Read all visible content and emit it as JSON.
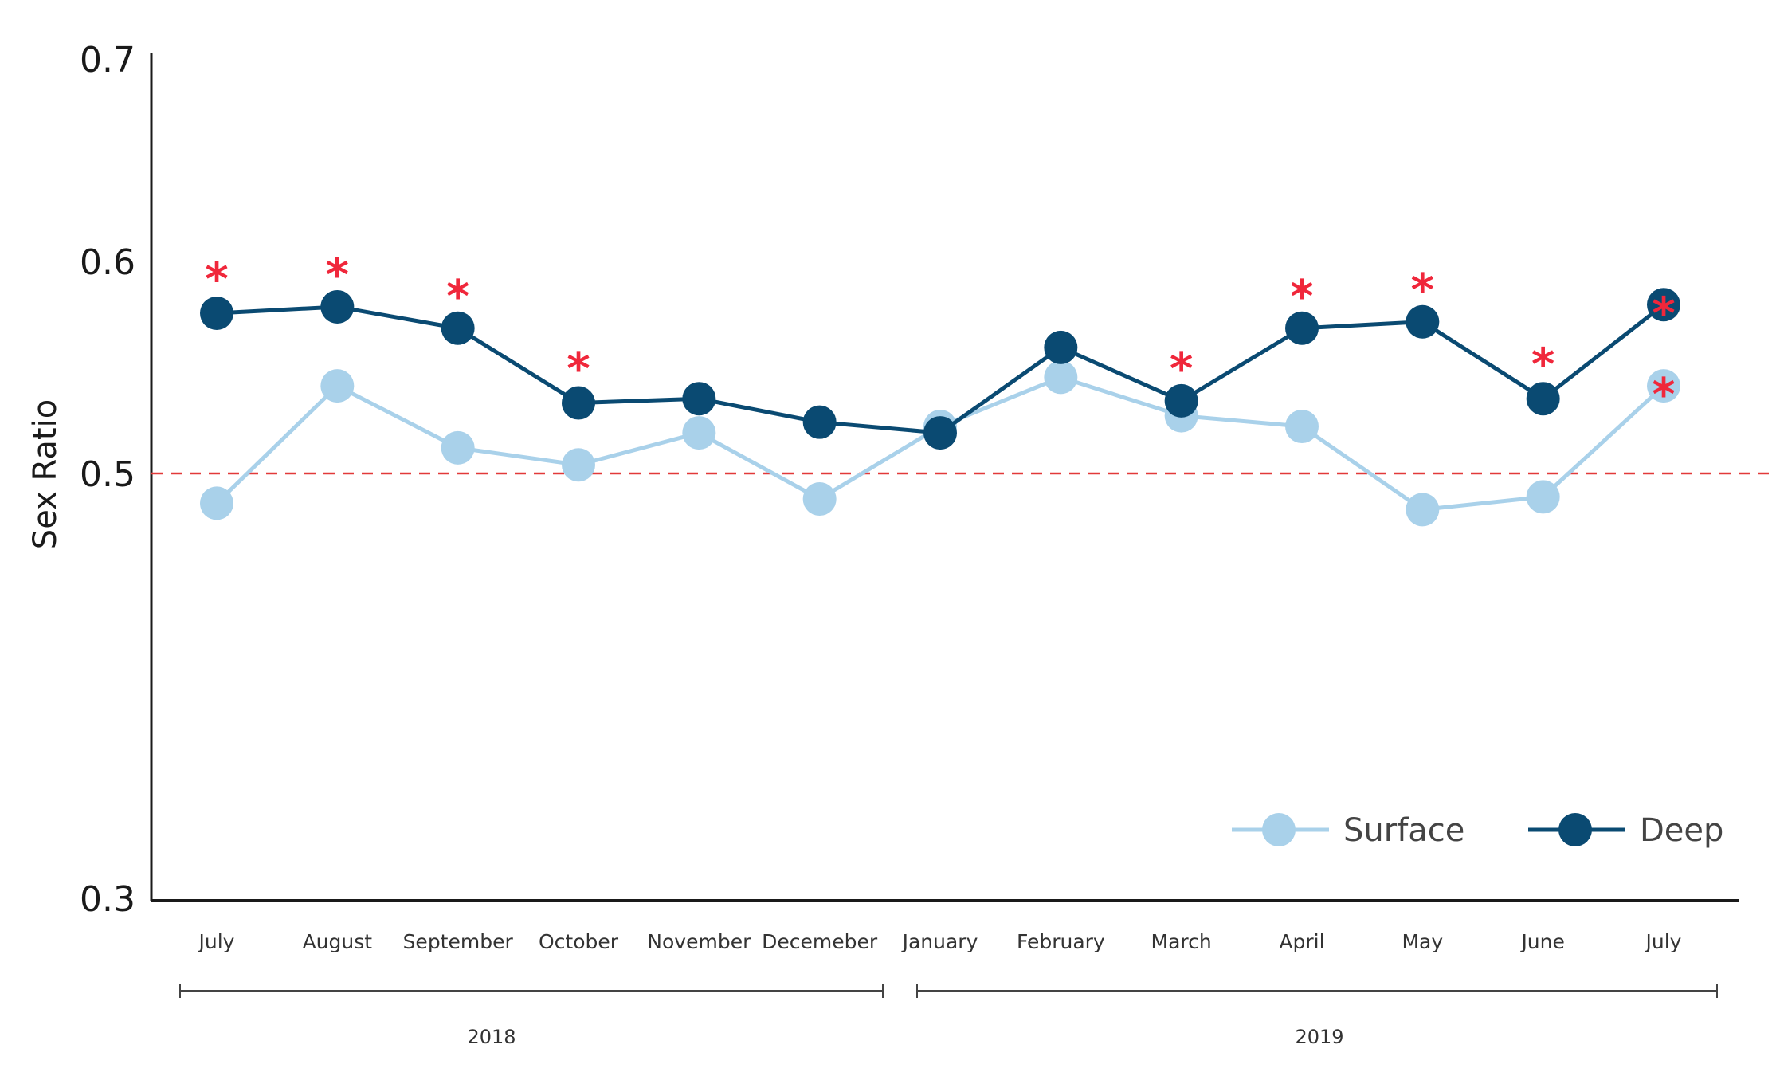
{
  "chart_data": {
    "type": "line",
    "ylabel": "Sex Ratio",
    "xlabel": "",
    "categories": [
      "July",
      "August",
      "September",
      "October",
      "November",
      "Decemeber",
      "January",
      "February",
      "March",
      "April",
      "May",
      "June",
      "July"
    ],
    "yticks": [
      "0.7",
      "0.6",
      "0.5",
      "0.3"
    ],
    "ytick_values": [
      0.7,
      0.6,
      0.5,
      0.3
    ],
    "ylim": [
      0.3,
      0.7
    ],
    "reference_line": {
      "value": 0.5,
      "style": "dashed",
      "color": "#e23a3a"
    },
    "series": [
      {
        "name": "Surface",
        "color": "#a9d1ea",
        "values": [
          0.486,
          0.541,
          0.512,
          0.504,
          0.519,
          0.488,
          0.522,
          0.545,
          0.527,
          0.522,
          0.483,
          0.489,
          0.541
        ]
      },
      {
        "name": "Deep",
        "color": "#0a4a72",
        "values": [
          0.575,
          0.578,
          0.568,
          0.533,
          0.535,
          0.524,
          0.519,
          0.559,
          0.534,
          0.568,
          0.571,
          0.535,
          0.579
        ]
      }
    ],
    "significance_marks": [
      {
        "index": 0,
        "value": 0.595,
        "label": "*"
      },
      {
        "index": 1,
        "value": 0.597,
        "label": "*"
      },
      {
        "index": 2,
        "value": 0.587,
        "label": "*"
      },
      {
        "index": 3,
        "value": 0.553,
        "label": "*"
      },
      {
        "index": 8,
        "value": 0.553,
        "label": "*"
      },
      {
        "index": 9,
        "value": 0.587,
        "label": "*"
      },
      {
        "index": 10,
        "value": 0.59,
        "label": "*"
      },
      {
        "index": 11,
        "value": 0.555,
        "label": "*"
      },
      {
        "index": 12,
        "value": 0.579,
        "label": "*"
      },
      {
        "index": 12,
        "value": 0.541,
        "label": "*"
      }
    ],
    "year_groups": [
      {
        "label": "2018",
        "from_index": 0,
        "to_index": 5
      },
      {
        "label": "2019",
        "from_index": 6,
        "to_index": 12
      }
    ],
    "legend": {
      "position": "bottom-right",
      "entries": [
        "Surface",
        "Deep"
      ]
    },
    "star_color": "#f0273b"
  }
}
